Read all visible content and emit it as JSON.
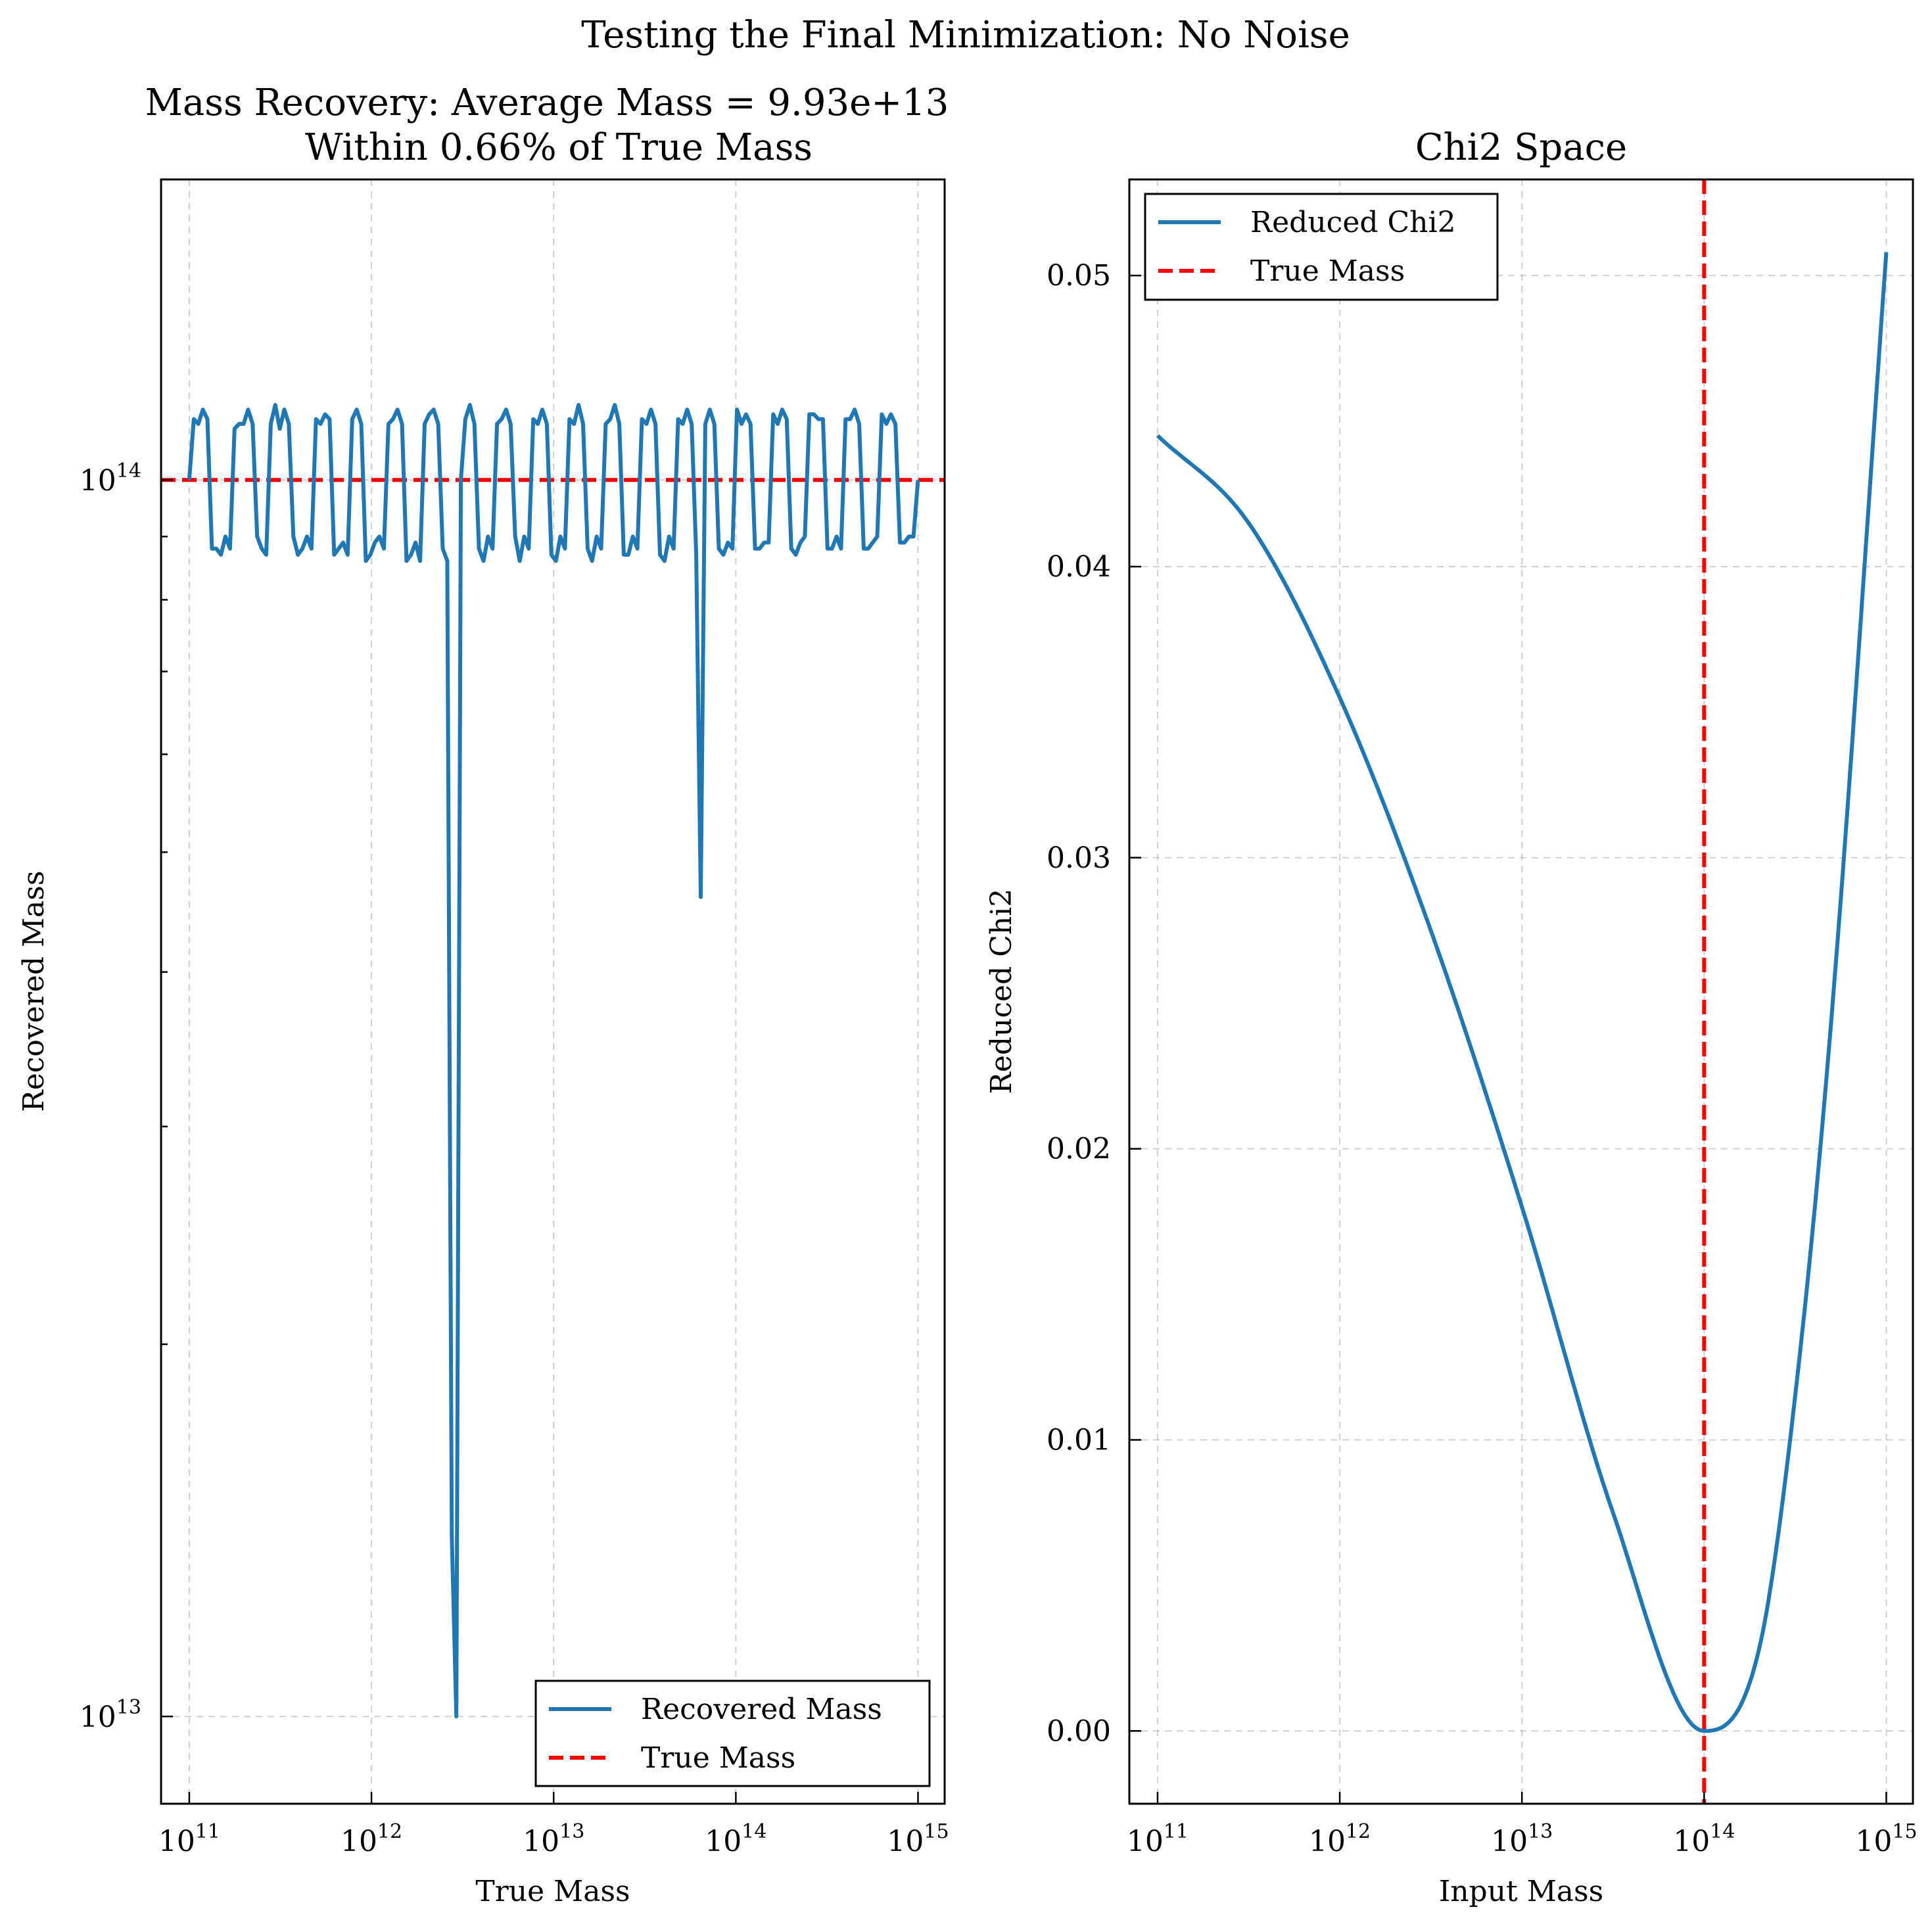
{
  "figure": {
    "suptitle": "Testing the Final Minimization: No Noise"
  },
  "chart_data": [
    {
      "type": "line",
      "title_line1": "Mass Recovery: Average Mass = 9.93e+13",
      "title_line2": "Within 0.66% of True Mass",
      "xlabel": "True Mass",
      "ylabel": "Recovered Mass",
      "xscale": "log",
      "yscale": "log",
      "xlim": [
        70000000000.0,
        1400000000000000.0
      ],
      "ylim": [
        8500000000000.0,
        175000000000000.0
      ],
      "grid": true,
      "legend_position": "lower-right",
      "x_ticks": [
        {
          "base": "10",
          "exp": "11",
          "value": 100000000000.0
        },
        {
          "base": "10",
          "exp": "12",
          "value": 1000000000000.0
        },
        {
          "base": "10",
          "exp": "13",
          "value": 10000000000000.0
        },
        {
          "base": "10",
          "exp": "14",
          "value": 100000000000000.0
        },
        {
          "base": "10",
          "exp": "15",
          "value": 1000000000000000.0
        }
      ],
      "y_ticks": [
        {
          "base": "10",
          "exp": "13",
          "value": 10000000000000.0
        },
        {
          "base": "10",
          "exp": "14",
          "value": 100000000000000.0
        }
      ],
      "y_minor_ticks": [
        20000000000000.0,
        30000000000000.0,
        40000000000000.0,
        50000000000000.0,
        60000000000000.0,
        70000000000000.0,
        80000000000000.0,
        90000000000000.0
      ],
      "series": [
        {
          "name": "Recovered Mass",
          "color": "#1f77b4",
          "style": "solid",
          "x_range": [
            100000000000.0,
            1000000000000000.0
          ],
          "y": [
            100000000000000.0,
            112000000000000.0,
            111000000000000.0,
            114000000000000.0,
            112000000000000.0,
            88000000000000.0,
            88000000000000.0,
            87000000000000.0,
            90000000000000.0,
            88000000000000.0,
            110000000000000.0,
            111000000000000.0,
            111000000000000.0,
            114000000000000.0,
            111000000000000.0,
            90000000000000.0,
            88000000000000.0,
            87000000000000.0,
            111000000000000.0,
            115000000000000.0,
            110000000000000.0,
            114000000000000.0,
            111000000000000.0,
            90000000000000.0,
            87000000000000.0,
            88000000000000.0,
            90000000000000.0,
            88000000000000.0,
            112000000000000.0,
            111000000000000.0,
            113000000000000.0,
            112000000000000.0,
            87000000000000.0,
            88000000000000.0,
            89000000000000.0,
            87000000000000.0,
            112000000000000.0,
            114000000000000.0,
            111000000000000.0,
            86000000000000.0,
            87000000000000.0,
            89000000000000.0,
            90000000000000.0,
            88000000000000.0,
            111000000000000.0,
            112000000000000.0,
            114000000000000.0,
            111000000000000.0,
            86000000000000.0,
            87000000000000.0,
            89000000000000.0,
            86000000000000.0,
            111000000000000.0,
            113000000000000.0,
            114000000000000.0,
            111000000000000.0,
            88000000000000.0,
            86000000000000.0,
            14000000000000.0,
            10000000000000.0,
            100000000000000.0,
            112000000000000.0,
            115000000000000.0,
            111000000000000.0,
            88000000000000.0,
            86000000000000.0,
            90000000000000.0,
            88000000000000.0,
            111000000000000.0,
            112000000000000.0,
            114000000000000.0,
            111000000000000.0,
            90000000000000.0,
            86000000000000.0,
            90000000000000.0,
            88000000000000.0,
            112000000000000.0,
            111000000000000.0,
            114000000000000.0,
            111000000000000.0,
            87000000000000.0,
            86000000000000.0,
            90000000000000.0,
            88000000000000.0,
            112000000000000.0,
            111000000000000.0,
            115000000000000.0,
            111000000000000.0,
            88000000000000.0,
            86000000000000.0,
            90000000000000.0,
            88000000000000.0,
            111000000000000.0,
            112000000000000.0,
            115000000000000.0,
            111000000000000.0,
            87000000000000.0,
            87000000000000.0,
            90000000000000.0,
            88000000000000.0,
            112000000000000.0,
            111000000000000.0,
            114000000000000.0,
            111000000000000.0,
            87000000000000.0,
            86000000000000.0,
            90000000000000.0,
            88000000000000.0,
            112000000000000.0,
            111000000000000.0,
            114000000000000.0,
            111000000000000.0,
            87000000000000.0,
            46000000000000.0,
            111000000000000.0,
            114000000000000.0,
            111000000000000.0,
            88000000000000.0,
            87000000000000.0,
            89000000000000.0,
            88000000000000.0,
            114000000000000.0,
            111000000000000.0,
            113000000000000.0,
            111000000000000.0,
            88000000000000.0,
            88000000000000.0,
            89000000000000.0,
            89000000000000.0,
            113000000000000.0,
            111000000000000.0,
            114000000000000.0,
            112000000000000.0,
            88000000000000.0,
            87000000000000.0,
            89000000000000.0,
            90000000000000.0,
            113000000000000.0,
            113000000000000.0,
            112000000000000.0,
            112000000000000.0,
            88000000000000.0,
            88000000000000.0,
            90000000000000.0,
            88000000000000.0,
            112000000000000.0,
            112000000000000.0,
            114000000000000.0,
            111000000000000.0,
            88000000000000.0,
            88000000000000.0,
            89000000000000.0,
            90000000000000.0,
            113000000000000.0,
            111000000000000.0,
            113000000000000.0,
            111000000000000.0,
            89000000000000.0,
            89000000000000.0,
            90000000000000.0,
            90000000000000.0,
            100000000000000.0
          ]
        },
        {
          "name": "True Mass",
          "color": "#ff0000",
          "style": "dashed",
          "y_value": 100000000000000.0
        }
      ]
    },
    {
      "type": "line",
      "title": "Chi2 Space",
      "xlabel": "Input Mass",
      "ylabel": "Reduced Chi2",
      "xscale": "log",
      "yscale": "linear",
      "xlim": [
        70000000000.0,
        1400000000000000.0
      ],
      "ylim": [
        -0.0025,
        0.0533
      ],
      "grid": true,
      "legend_position": "upper-left",
      "x_ticks": [
        {
          "base": "10",
          "exp": "11",
          "value": 100000000000.0
        },
        {
          "base": "10",
          "exp": "12",
          "value": 1000000000000.0
        },
        {
          "base": "10",
          "exp": "13",
          "value": 10000000000000.0
        },
        {
          "base": "10",
          "exp": "14",
          "value": 100000000000000.0
        },
        {
          "base": "10",
          "exp": "15",
          "value": 1000000000000000.0
        }
      ],
      "y_ticks": [
        {
          "label": "0.00",
          "value": 0.0
        },
        {
          "label": "0.01",
          "value": 0.01
        },
        {
          "label": "0.02",
          "value": 0.02
        },
        {
          "label": "0.03",
          "value": 0.03
        },
        {
          "label": "0.04",
          "value": 0.04
        },
        {
          "label": "0.05",
          "value": 0.05
        }
      ],
      "series": [
        {
          "name": "Reduced Chi2",
          "color": "#1f77b4",
          "style": "solid",
          "x": [
            100000000000.0,
            316000000000.0,
            1000000000000.0,
            3160000000000.0,
            10000000000000.0,
            31600000000000.0,
            100000000000000.0,
            200000000000000.0,
            316000000000000.0,
            500000000000000.0,
            1000000000000000.0
          ],
          "y": [
            0.0445,
            0.0415,
            0.0355,
            0.0275,
            0.018,
            0.0075,
            0.0,
            0.0028,
            0.0115,
            0.0245,
            0.0508
          ]
        },
        {
          "name": "True Mass",
          "color": "#ff0000",
          "style": "dashed",
          "x_value": 100000000000000.0
        }
      ]
    }
  ]
}
